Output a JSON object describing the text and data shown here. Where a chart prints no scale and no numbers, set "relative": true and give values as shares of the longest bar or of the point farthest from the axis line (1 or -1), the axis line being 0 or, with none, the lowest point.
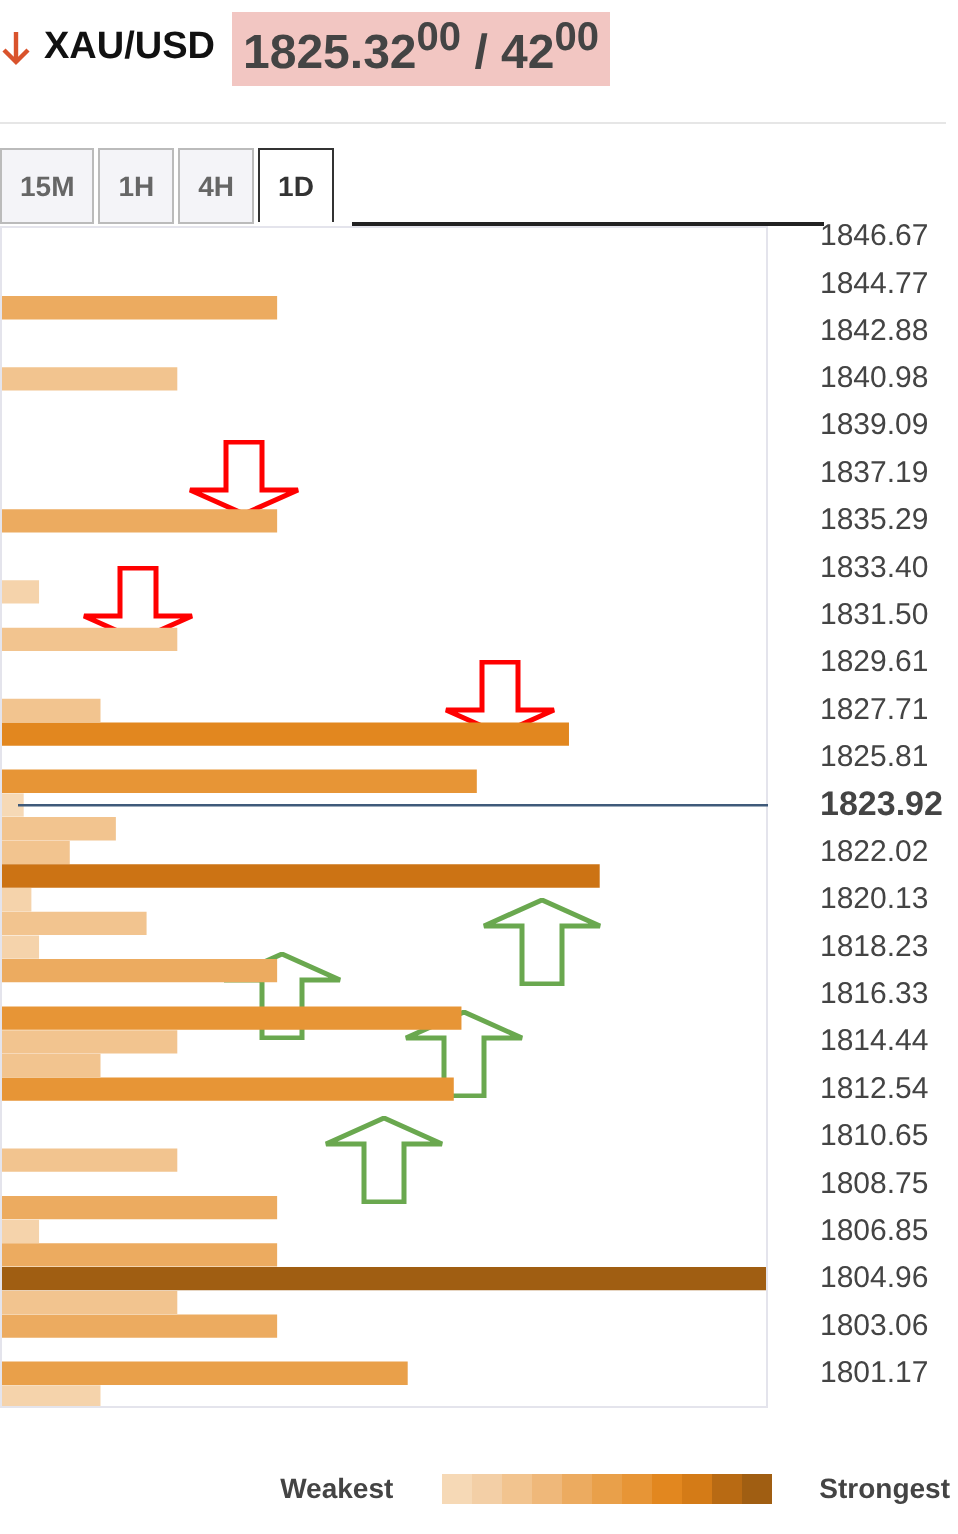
{
  "chart_data": {
    "type": "bar",
    "orientation": "horizontal",
    "relative": true,
    "title": "XAU/USD",
    "subtitle": "1825.32$^{00}$ / 42$^{00}$",
    "annotations": [
      "15M",
      "1H",
      "4H",
      "1D",
      "Weakest",
      "Strongest"
    ],
    "x": [
      1843.83,
      1840.98,
      1835.3,
      1832.46,
      1830.56,
      1827.72,
      1826.77,
      1824.88,
      1823.93,
      1822.98,
      1822.03,
      1821.09,
      1820.14,
      1819.19,
      1818.24,
      1817.3,
      1815.4,
      1814.45,
      1813.51,
      1812.56,
      1809.72,
      1807.82,
      1806.87,
      1805.93,
      1804.98,
      1804.03,
      1803.08,
      1801.19,
      1800.24
    ],
    "values": [
      0.36,
      0.23,
      0.36,
      0.05,
      0.23,
      0.13,
      0.74,
      0.62,
      0.03,
      0.15,
      0.09,
      0.78,
      0.04,
      0.19,
      0.05,
      0.36,
      0.6,
      0.23,
      0.13,
      0.59,
      0.23,
      0.36,
      0.05,
      0.36,
      1,
      0.23,
      0.36,
      0.53,
      0.13
    ],
    "colors": [
      "#ecab60",
      "#f2c48f",
      "#ecab60",
      "#f5d3ab",
      "#f2c48f",
      "#f2c48f",
      "#e2871f",
      "#e79536",
      "#f6d9b6",
      "#f2c48f",
      "#f2c48f",
      "#cc7314",
      "#f5d3ab",
      "#f2c48f",
      "#f5d3ab",
      "#ecab60",
      "#e79536",
      "#f2c48f",
      "#f2c48f",
      "#e79536",
      "#f2c48f",
      "#ecab60",
      "#f5d3ab",
      "#ecab60",
      "#a05e12",
      "#f2c48f",
      "#ecab60",
      "#e9a04a",
      "#f5d3ab"
    ],
    "ylim": [
      1799.8,
      1847.1
    ],
    "yticks": [
      1846.67,
      1844.77,
      1842.88,
      1840.98,
      1839.09,
      1837.19,
      1835.29,
      {
        "value": 1833.4,
        "label": "1833.40"
      },
      {
        "value": 1831.5,
        "label": "1831.50"
      },
      1829.61,
      1827.71,
      1825.81,
      1823.92,
      1822.02,
      1820.13,
      1818.23,
      1816.33,
      1814.44,
      1812.54,
      1810.65,
      1808.75,
      1806.85,
      1804.96,
      1803.06,
      1801.17
    ],
    "ref_lines": [
      {
        "axis": "y",
        "value": 1823.92,
        "color": "#3f5a7a"
      }
    ],
    "grid": false,
    "legend": false
  }
}
